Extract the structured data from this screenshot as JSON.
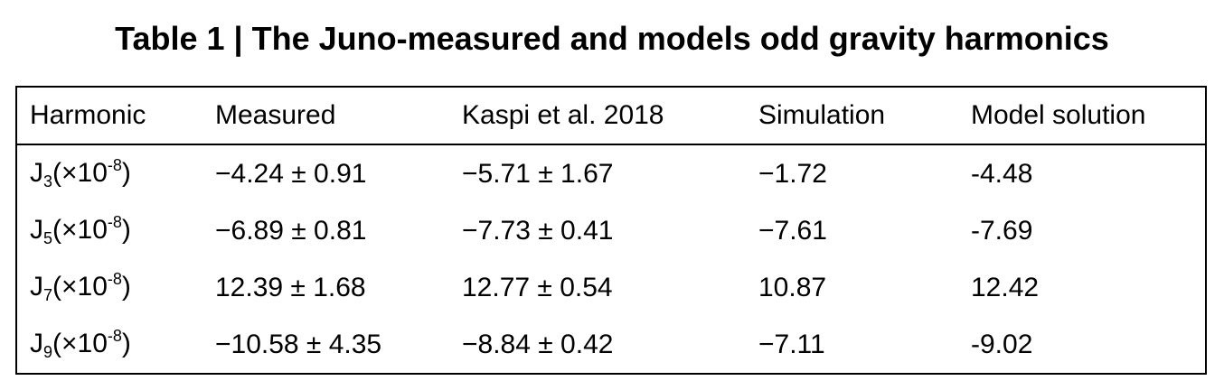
{
  "header": {
    "title": "Table 1 | The Juno-measured and models odd gravity harmonics"
  },
  "table": {
    "columns": [
      "Harmonic",
      "Measured",
      "Kaspi et al. 2018",
      "Simulation",
      "Model solution"
    ],
    "rows": [
      [
        {
          "base": "J",
          "sub": "3",
          "mult": "(×10",
          "sup": "-8",
          "close": ")"
        },
        "−4.24 ± 0.91",
        "−5.71 ± 1.67",
        "−1.72",
        "-4.48"
      ],
      [
        {
          "base": "J",
          "sub": "5",
          "mult": "(×10",
          "sup": "-8",
          "close": ")"
        },
        "−6.89 ± 0.81",
        "−7.73 ± 0.41",
        "−7.61",
        "-7.69"
      ],
      [
        {
          "base": "J",
          "sub": "7",
          "mult": "(×10",
          "sup": "-8",
          "close": ")"
        },
        "12.39 ± 1.68",
        "12.77 ± 0.54",
        "10.87",
        "12.42"
      ],
      [
        {
          "base": "J",
          "sub": "9",
          "mult": "(×10",
          "sup": "-8",
          "close": ")"
        },
        "−10.58 ± 4.35",
        "−8.84 ± 0.42",
        "−7.11",
        "-9.02"
      ]
    ]
  }
}
